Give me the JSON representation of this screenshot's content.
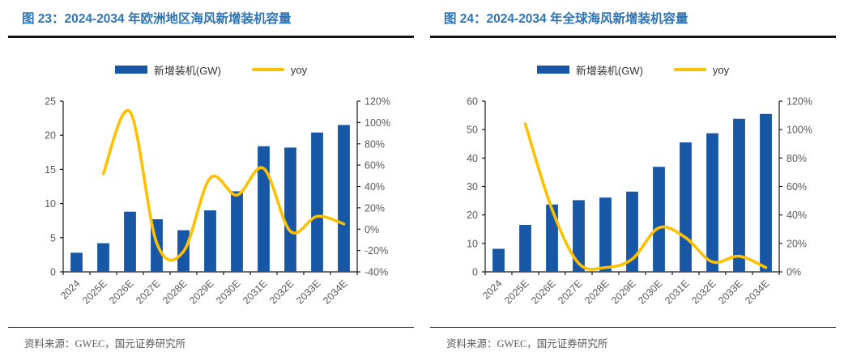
{
  "figures": [
    {
      "id": "fig-23",
      "title": "图 23：2024-2034 年欧洲地区海风新增装机容量",
      "source": "资料来源：GWEC，国元证券研究所"
    },
    {
      "id": "fig-24",
      "title": "图 24：2024-2034 年全球海风新增装机容量",
      "source": "资料来源：GWEC，国元证券研究所"
    }
  ],
  "colors": {
    "title_blue": "#2E74B5",
    "bar_blue": "#1757A6",
    "line_yellow": "#FFC000",
    "axis_line": "#1a1a1a",
    "tick_label": "#595959"
  },
  "chart_data": [
    {
      "type": "bar",
      "subtype": "bar+line-dual-axis",
      "title": "2024-2034 年欧洲地区海风新增装机容量",
      "categories": [
        "2024",
        "2025E",
        "2026E",
        "2027E",
        "2028E",
        "2029E",
        "2030E",
        "2031E",
        "2032E",
        "2033E",
        "2034E"
      ],
      "series": [
        {
          "name": "新增装机(GW)",
          "type": "bar",
          "axis": "left",
          "color": "#1757A6",
          "values": [
            2.8,
            4.2,
            8.8,
            7.7,
            6.1,
            9.0,
            11.8,
            18.4,
            18.2,
            20.4,
            21.5
          ]
        },
        {
          "name": "yoy",
          "type": "line",
          "axis": "right",
          "color": "#FFC000",
          "values": [
            null,
            52,
            110,
            -13,
            -21,
            48,
            32,
            57,
            -2,
            12,
            5
          ]
        }
      ],
      "left_axis": {
        "min": 0,
        "max": 25,
        "step": 5,
        "suffix": ""
      },
      "right_axis": {
        "min": -40,
        "max": 120,
        "step": 20,
        "suffix": "%"
      },
      "legend_position": "top",
      "grid": false
    },
    {
      "type": "bar",
      "subtype": "bar+line-dual-axis",
      "title": "2024-2034 年全球海风新增装机容量",
      "categories": [
        "2024",
        "2025E",
        "2026E",
        "2027E",
        "2028E",
        "2029E",
        "2030E",
        "2031E",
        "2032E",
        "2033E",
        "2034E"
      ],
      "series": [
        {
          "name": "新增装机(GW)",
          "type": "bar",
          "axis": "left",
          "color": "#1757A6",
          "values": [
            8.1,
            16.5,
            23.7,
            25.2,
            26.1,
            28.2,
            36.9,
            45.5,
            48.7,
            53.8,
            55.5
          ]
        },
        {
          "name": "yoy",
          "type": "line",
          "axis": "right",
          "color": "#FFC000",
          "values": [
            null,
            104,
            44,
            6,
            3,
            9,
            31,
            24,
            7,
            11,
            3
          ]
        }
      ],
      "left_axis": {
        "min": 0,
        "max": 60,
        "step": 10,
        "suffix": ""
      },
      "right_axis": {
        "min": 0,
        "max": 120,
        "step": 20,
        "suffix": "%"
      },
      "legend_position": "top",
      "grid": false
    }
  ]
}
